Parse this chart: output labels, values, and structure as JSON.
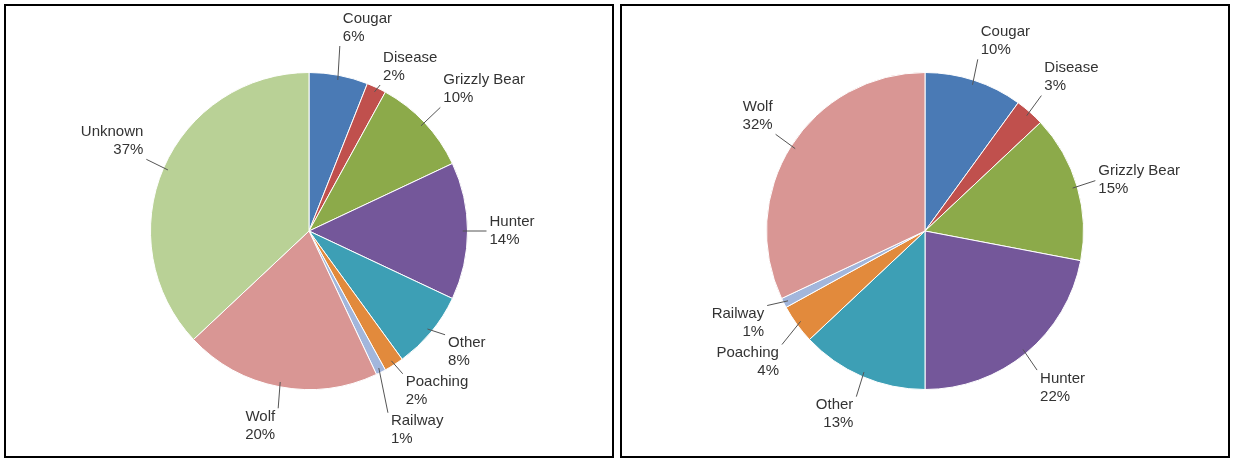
{
  "chart_data": [
    {
      "type": "pie",
      "categories": [
        "Cougar",
        "Disease",
        "Grizzly Bear",
        "Hunter",
        "Other",
        "Poaching",
        "Railway",
        "Wolf",
        "Unknown"
      ],
      "values": [
        6,
        2,
        10,
        14,
        8,
        2,
        1,
        20,
        37
      ],
      "value_labels": [
        "6%",
        "2%",
        "10%",
        "14%",
        "8%",
        "2%",
        "1%",
        "20%",
        "37%"
      ],
      "colors": [
        "#4a7ab5",
        "#c0504d",
        "#8caa4a",
        "#74579a",
        "#3d9fb5",
        "#e28a3c",
        "#a2b6dc",
        "#d99694",
        "#b9d196"
      ]
    },
    {
      "type": "pie",
      "categories": [
        "Cougar",
        "Disease",
        "Grizzly Bear",
        "Hunter",
        "Other",
        "Poaching",
        "Railway",
        "Wolf"
      ],
      "values": [
        10,
        3,
        15,
        22,
        13,
        4,
        1,
        32
      ],
      "value_labels": [
        "10%",
        "3%",
        "15%",
        "22%",
        "13%",
        "4%",
        "1%",
        "32%"
      ],
      "colors": [
        "#4a7ab5",
        "#c0504d",
        "#8caa4a",
        "#74579a",
        "#3d9fb5",
        "#e28a3c",
        "#a2b6dc",
        "#d99694"
      ]
    }
  ]
}
